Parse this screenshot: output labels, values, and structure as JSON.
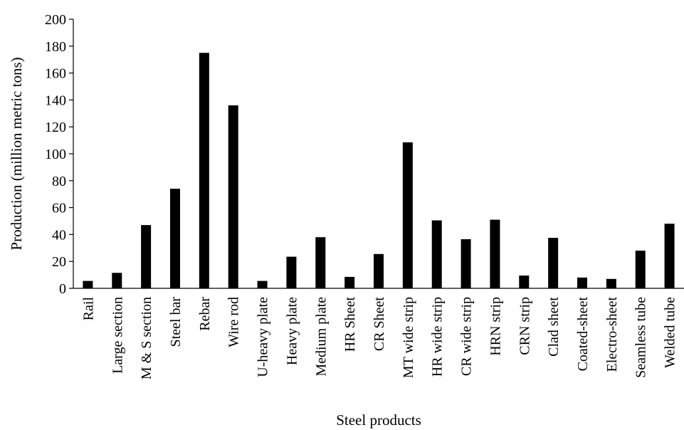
{
  "chart_data": {
    "type": "bar",
    "xlabel": "Steel products",
    "ylabel": "Production (million metric tons)",
    "ylim": [
      0,
      200
    ],
    "yticks": [
      0,
      20,
      40,
      60,
      80,
      100,
      120,
      140,
      160,
      180,
      200
    ],
    "grid": false,
    "legend": "none",
    "bar_color": "#000000",
    "categories": [
      "Rail",
      "Large section",
      "M & S section",
      "Steel bar",
      "Rebar",
      "Wire rod",
      "U-heavy plate",
      "Heavy plate",
      "Medium plate",
      "HR Sheet",
      "CR Sheet",
      "MT wide strip",
      "HR wide strip",
      "CR wide strip",
      "HRN strip",
      "CRN strip",
      "Clad sheet",
      "Coated-sheet",
      "Electro-sheet",
      "Seamless tube",
      "Welded tube"
    ],
    "values": [
      5.5,
      11.5,
      47,
      74,
      175,
      136,
      5.5,
      23.5,
      38,
      8.5,
      25.5,
      108.5,
      50.5,
      36.5,
      51,
      9.5,
      37.5,
      8,
      7,
      28,
      48
    ]
  }
}
